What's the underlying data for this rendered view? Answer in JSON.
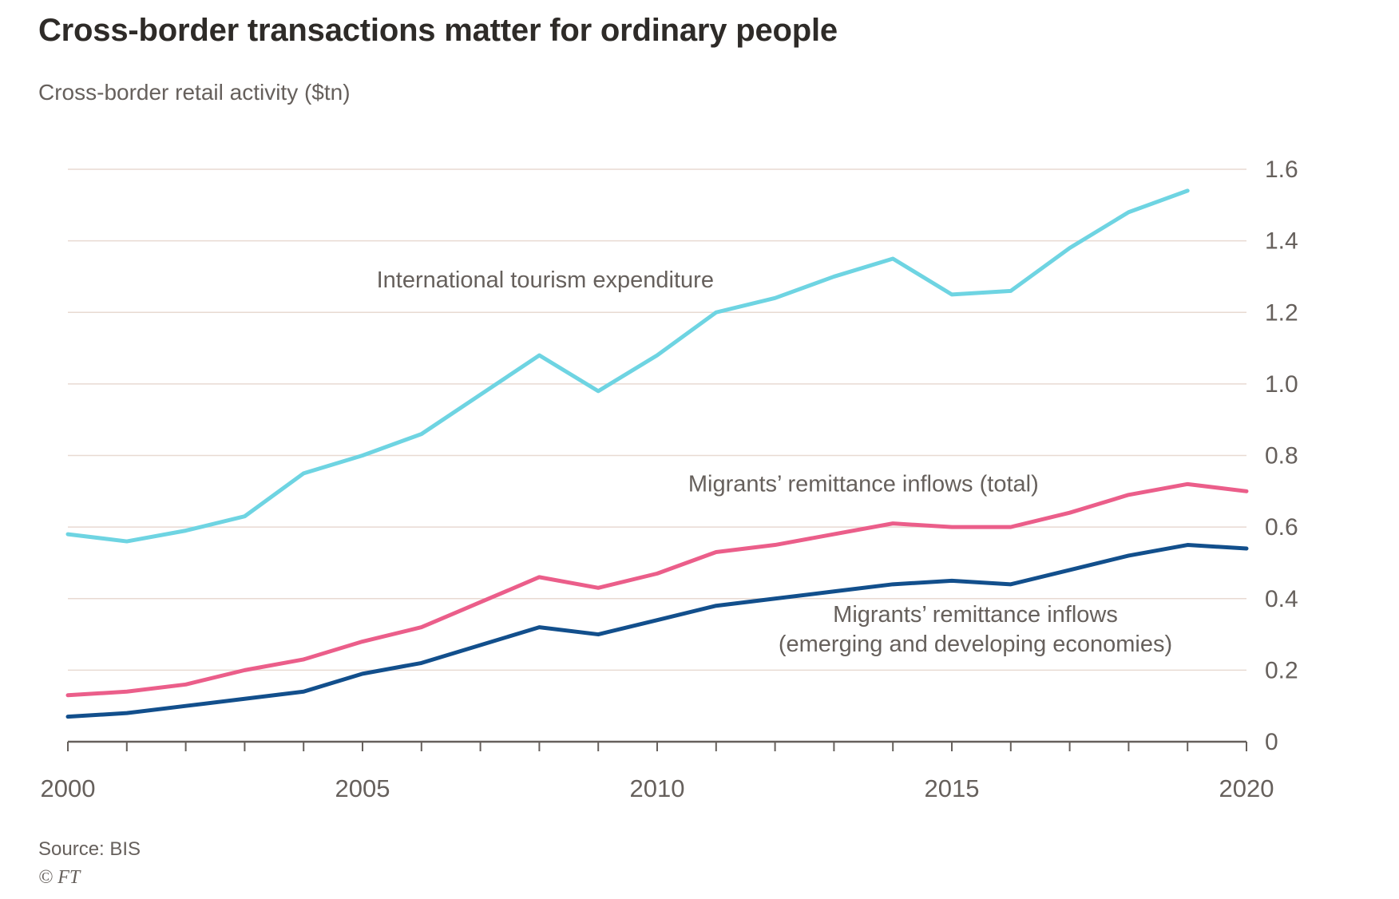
{
  "chart_data": {
    "type": "line",
    "title": "Cross-border transactions matter for ordinary people",
    "subtitle": "Cross-border retail activity ($tn)",
    "xlabel": "",
    "ylabel": "",
    "xlim": [
      2000,
      2020
    ],
    "ylim": [
      0,
      1.6
    ],
    "grid": "horizontal",
    "legend_position": "inline-annotations",
    "ytick_side": "right",
    "xticks": [
      2000,
      2005,
      2010,
      2015,
      2020
    ],
    "yticks": [
      0,
      0.2,
      0.4,
      0.6,
      0.8,
      1.0,
      1.2,
      1.4,
      1.6
    ],
    "ytick_labels": [
      "0",
      "0.2",
      "0.4",
      "0.6",
      "0.8",
      "1.0",
      "1.2",
      "1.4",
      "1.6"
    ],
    "x": [
      2000,
      2001,
      2002,
      2003,
      2004,
      2005,
      2006,
      2007,
      2008,
      2009,
      2010,
      2011,
      2012,
      2013,
      2014,
      2015,
      2016,
      2017,
      2018,
      2019,
      2020
    ],
    "series": [
      {
        "name": "International tourism expenditure",
        "color": "#6ED4E2",
        "values": [
          0.58,
          0.56,
          0.59,
          0.63,
          0.75,
          0.8,
          0.86,
          0.97,
          1.08,
          0.98,
          1.08,
          1.2,
          1.24,
          1.3,
          1.35,
          1.25,
          1.26,
          1.38,
          1.48,
          1.54,
          null
        ]
      },
      {
        "name": "Migrants’ remittance inflows (total)",
        "color": "#EB5E8A",
        "values": [
          0.13,
          0.14,
          0.16,
          0.2,
          0.23,
          0.28,
          0.32,
          0.39,
          0.46,
          0.43,
          0.47,
          0.53,
          0.55,
          0.58,
          0.61,
          0.6,
          0.6,
          0.64,
          0.69,
          0.72,
          0.7
        ]
      },
      {
        "name": "Migrants’ remittance inflows (emerging and developing economies)",
        "color": "#124F8C",
        "values": [
          0.07,
          0.08,
          0.1,
          0.12,
          0.14,
          0.19,
          0.22,
          0.27,
          0.32,
          0.3,
          0.34,
          0.38,
          0.4,
          0.42,
          0.44,
          0.45,
          0.44,
          0.48,
          0.52,
          0.55,
          0.54
        ]
      }
    ],
    "annotations": [
      {
        "lines": [
          "International tourism expenditure"
        ],
        "x": 2008.1,
        "y": 1.27,
        "anchor": "middle"
      },
      {
        "lines": [
          "Migrants’ remittance inflows (total)"
        ],
        "x": 2013.5,
        "y": 0.7,
        "anchor": "middle"
      },
      {
        "lines": [
          "Migrants’ remittance inflows",
          "(emerging and developing economies)"
        ],
        "x": 2015.4,
        "y": 0.335,
        "anchor": "middle"
      }
    ]
  },
  "footer": {
    "source": "Source: BIS",
    "copyright": "© FT"
  },
  "colors": {
    "background": "#FFFFFF",
    "title_text": "#2E2B28",
    "muted_text": "#66605C",
    "gridline": "#E8DAD2",
    "axis": "#66605C"
  }
}
